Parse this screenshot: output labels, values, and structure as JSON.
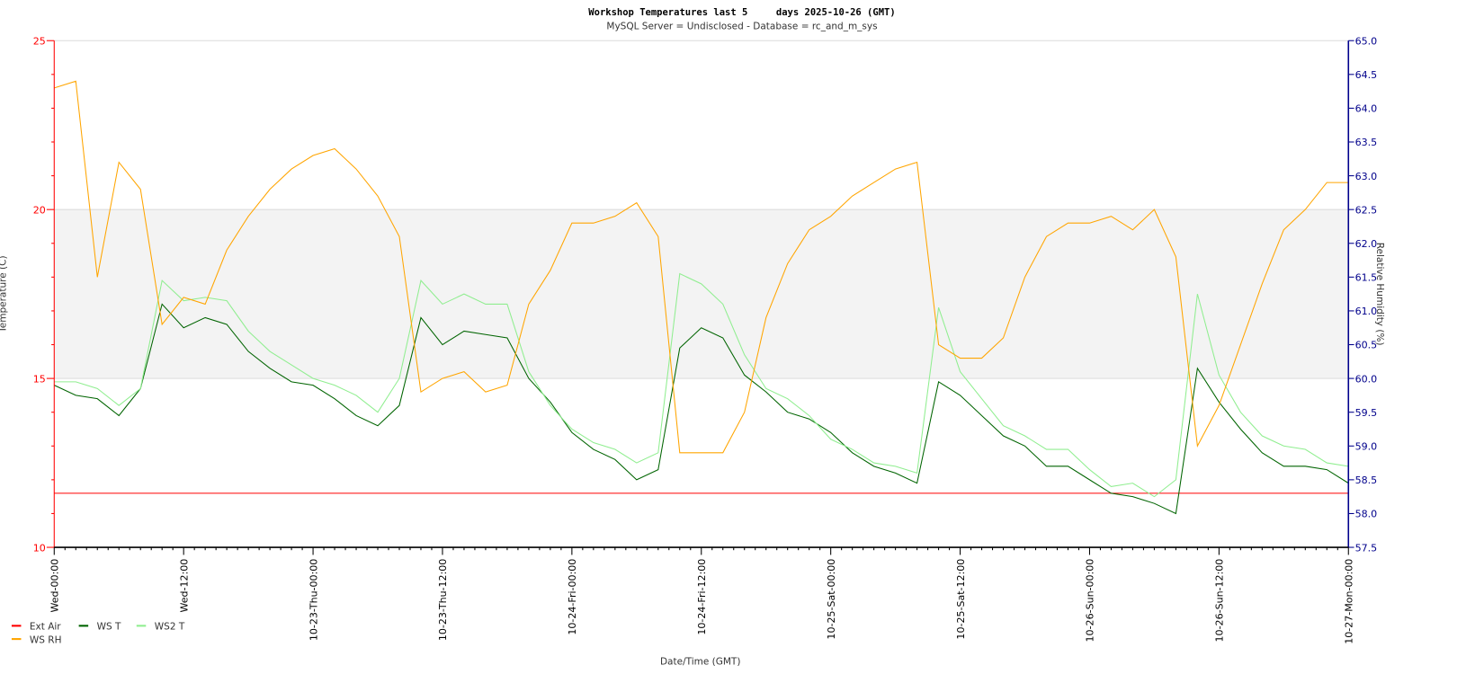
{
  "chart_data": {
    "type": "line",
    "title": "Workshop Temperatures last 5     days 2025-10-26 (GMT)",
    "subtitle": "MySQL Server = Undisclosed - Database = rc_and_m_sys",
    "xlabel": "Date/Time (GMT)",
    "ylabel": "Temperature (C)",
    "y2label": "Relative Humidity (%)",
    "ylim": [
      10,
      25
    ],
    "y2lim": [
      57.5,
      65.0
    ],
    "yticks": [
      "10",
      "15",
      "20",
      "25"
    ],
    "y2ticks": [
      "57.5",
      "58.0",
      "58.5",
      "59.0",
      "59.5",
      "60.0",
      "60.5",
      "61.0",
      "61.5",
      "62.0",
      "62.5",
      "63.0",
      "63.5",
      "64.0",
      "64.5",
      "65.0"
    ],
    "xticks": [
      "Wed-00:00",
      "Wed-12:00",
      "10-23-Thu-00:00",
      "10-23-Thu-12:00",
      "10-24-Fri-00:00",
      "10-24-Fri-12:00",
      "10-25-Sat-00:00",
      "10-25-Sat-12:00",
      "10-26-Sun-00:00",
      "10-26-Sun-12:00",
      "10-27-Mon-00:00"
    ],
    "xrange": [
      "10-22 00:00",
      "10-27 00:00"
    ],
    "x_step_hours": 2,
    "band": {
      "from": 15,
      "to": 20,
      "color": "#f3f3f3"
    },
    "legend_placement": "bottom-left",
    "colors": {
      "left_axis": "#ff0000",
      "right_axis": "#00008b"
    },
    "series": [
      {
        "name": "Ext Air",
        "axis": "left",
        "color": "#ff0000",
        "constant": 11.6
      },
      {
        "name": "WS T",
        "axis": "left",
        "color": "#006400",
        "values": [
          14.8,
          14.5,
          14.4,
          13.9,
          14.7,
          17.2,
          16.5,
          16.8,
          16.6,
          15.8,
          15.3,
          14.9,
          14.8,
          14.4,
          13.9,
          13.6,
          14.2,
          16.8,
          16.0,
          16.4,
          16.3,
          16.2,
          15.0,
          14.3,
          13.4,
          12.9,
          12.6,
          12.0,
          12.3,
          15.9,
          16.5,
          16.2,
          15.1,
          14.6,
          14.0,
          13.8,
          13.4,
          12.8,
          12.4,
          12.2,
          11.9,
          14.9,
          14.5,
          13.9,
          13.3,
          13.0,
          12.4,
          12.4,
          12.0,
          11.6,
          11.5,
          11.3,
          11.0,
          15.3,
          14.3,
          13.5,
          12.8,
          12.4,
          12.4,
          12.3,
          11.9
        ]
      },
      {
        "name": "WS2 T",
        "axis": "left",
        "color": "#90ee90",
        "values": [
          14.9,
          14.9,
          14.7,
          14.2,
          14.7,
          17.9,
          17.3,
          17.4,
          17.3,
          16.4,
          15.8,
          15.4,
          15.0,
          14.8,
          14.5,
          14.0,
          15.0,
          17.9,
          17.2,
          17.5,
          17.2,
          17.2,
          15.2,
          14.2,
          13.5,
          13.1,
          12.9,
          12.5,
          12.8,
          18.1,
          17.8,
          17.2,
          15.7,
          14.7,
          14.4,
          13.9,
          13.2,
          12.9,
          12.5,
          12.4,
          12.2,
          17.1,
          15.2,
          14.4,
          13.6,
          13.3,
          12.9,
          12.9,
          12.3,
          11.8,
          11.9,
          11.5,
          12.0,
          17.5,
          15.1,
          14.0,
          13.3,
          13.0,
          12.9,
          12.5,
          12.4
        ]
      },
      {
        "name": "WS RH",
        "axis": "right",
        "color": "#ffa500",
        "values": [
          64.3,
          64.4,
          61.5,
          63.2,
          62.8,
          60.8,
          61.2,
          61.1,
          61.9,
          62.4,
          62.8,
          63.1,
          63.3,
          63.4,
          63.1,
          62.7,
          62.1,
          59.8,
          60.0,
          60.1,
          59.8,
          59.9,
          61.1,
          61.6,
          62.3,
          62.3,
          62.4,
          62.6,
          62.1,
          58.9,
          58.9,
          58.9,
          59.5,
          60.9,
          61.7,
          62.2,
          62.4,
          62.7,
          62.9,
          63.1,
          63.2,
          60.5,
          60.3,
          60.3,
          60.6,
          61.5,
          62.1,
          62.3,
          62.3,
          62.4,
          62.2,
          62.5,
          61.8,
          59.0,
          59.6,
          60.5,
          61.4,
          62.2,
          62.5,
          62.9,
          62.9
        ]
      }
    ]
  }
}
